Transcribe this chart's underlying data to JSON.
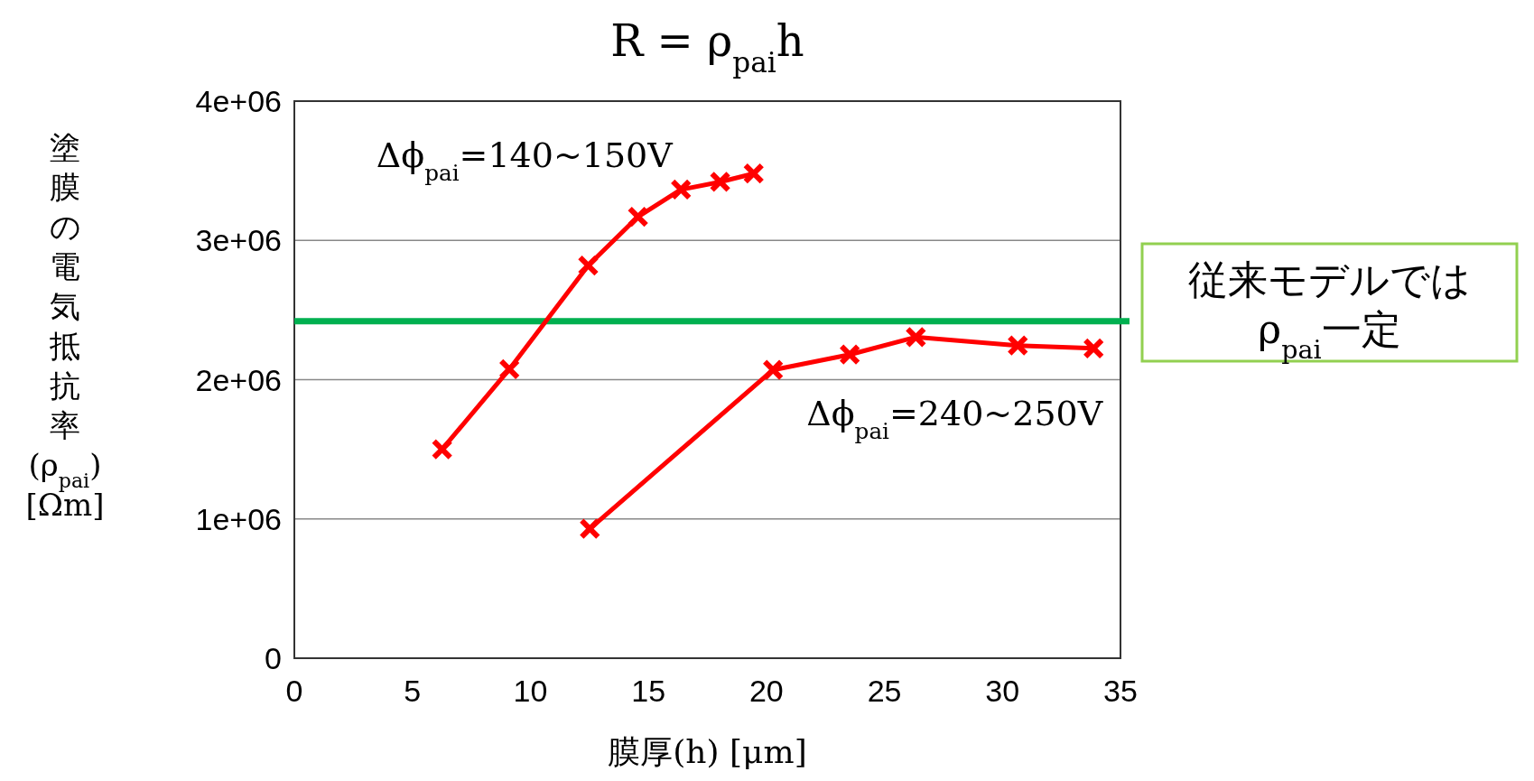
{
  "chart_data": {
    "type": "line",
    "title": "R = ρ$_{pai}$h",
    "xlabel": "膜厚(h) [μm]",
    "ylabel": "塗膜の電気抵抗率(ρ$_{pai}$)[Ωm]",
    "xlim": [
      0,
      35
    ],
    "xticks": [
      0,
      5,
      10,
      15,
      20,
      25,
      30,
      35
    ],
    "ylim": [
      0,
      4000000
    ],
    "yticks": [
      0,
      {
        "value": 1000000,
        "label": "1e+06"
      },
      {
        "value": 2000000,
        "label": "2e+06"
      },
      {
        "value": 3000000,
        "label": "3e+06"
      },
      {
        "value": 4000000,
        "label": "4e+06"
      }
    ],
    "grid": "y",
    "marker": "cross",
    "line_style": "solid",
    "series": [
      {
        "name": "Δϕ$_{pai}$=140~150V",
        "color": "#ff0000",
        "x": [
          6.26,
          9.11,
          12.45,
          14.56,
          16.38,
          18.04,
          19.46
        ],
        "values": [
          1500000,
          2075000,
          2820000,
          3170000,
          3365000,
          3420000,
          3480000
        ]
      },
      {
        "name": "Δϕ$_{pai}$=240~250V",
        "color": "#ff0000",
        "x": [
          12.52,
          20.28,
          23.53,
          26.33,
          30.65,
          33.86
        ],
        "values": [
          930000,
          2070000,
          2180000,
          2305000,
          2245000,
          2225000
        ]
      }
    ],
    "ref_lines": [
      {
        "axis": "y",
        "value": 2420000,
        "color": "#00b050",
        "line_style": "solid"
      }
    ],
    "annotations": [
      "従来モデルでは\nρ$_{pai}$一定"
    ]
  }
}
